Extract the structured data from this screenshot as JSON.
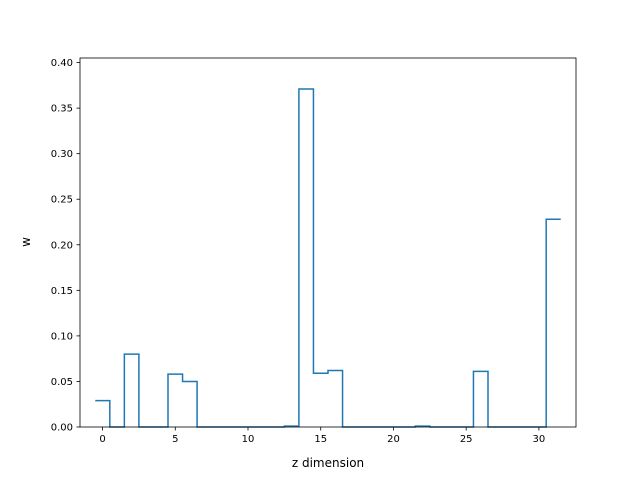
{
  "chart_data": {
    "type": "line",
    "style": "step",
    "xlabel": "z dimension",
    "ylabel": "w",
    "xlim": [
      -1.55,
      32.55
    ],
    "ylim": [
      0,
      0.405
    ],
    "xticks": [
      0,
      5,
      10,
      15,
      20,
      25,
      30
    ],
    "yticks": [
      0.0,
      0.05,
      0.1,
      0.15,
      0.2,
      0.25,
      0.3,
      0.35,
      0.4
    ],
    "ytick_labels": [
      "0.00",
      "0.05",
      "0.10",
      "0.15",
      "0.20",
      "0.25",
      "0.30",
      "0.35",
      "0.40"
    ],
    "grid": false,
    "line_color": "#1f77b4",
    "x": [
      0,
      1,
      2,
      3,
      4,
      5,
      6,
      7,
      8,
      9,
      10,
      11,
      12,
      13,
      14,
      15,
      16,
      17,
      18,
      19,
      20,
      21,
      22,
      23,
      24,
      25,
      26,
      27,
      28,
      29,
      30,
      31
    ],
    "values": [
      0.029,
      0.0,
      0.08,
      0.0,
      0.0,
      0.058,
      0.05,
      0.0,
      0.0,
      0.0,
      0.0,
      0.0,
      0.0,
      0.001,
      0.371,
      0.059,
      0.062,
      0.0,
      0.0,
      0.0,
      0.0,
      0.0,
      0.001,
      0.0,
      0.0,
      0.0,
      0.061,
      0.0,
      0.0,
      0.0,
      0.0,
      0.228
    ]
  }
}
